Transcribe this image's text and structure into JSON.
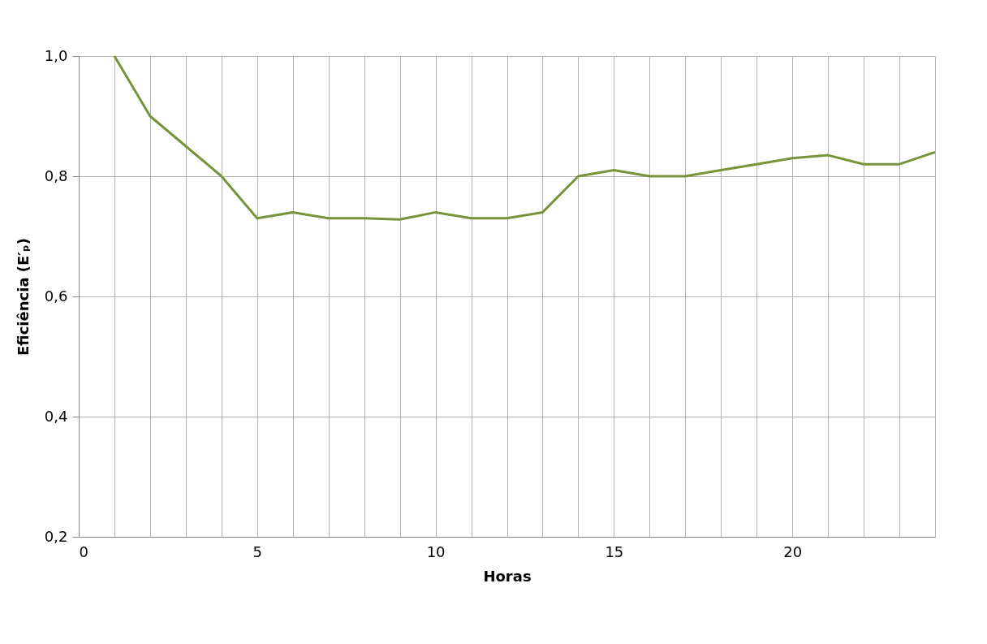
{
  "chart_data": {
    "type": "line",
    "xlabel": "Horas",
    "ylabel": "Eficiência (E′ₚ)",
    "x": [
      1,
      2,
      3,
      4,
      5,
      6,
      7,
      8,
      9,
      10,
      11,
      12,
      13,
      14,
      15,
      16,
      17,
      18,
      19,
      20,
      21,
      22,
      23,
      24
    ],
    "series": [
      {
        "color": "#77933c",
        "values": [
          1.0,
          0.9,
          0.85,
          0.8,
          0.73,
          0.74,
          0.73,
          0.73,
          0.728,
          0.74,
          0.73,
          0.73,
          0.74,
          0.8,
          0.81,
          0.8,
          0.8,
          0.81,
          0.82,
          0.83,
          0.835,
          0.82,
          0.82,
          0.84
        ]
      }
    ],
    "xlim": [
      0,
      24
    ],
    "xticks": [
      0,
      {
        "value": 1,
        "label": null
      },
      {
        "value": 2,
        "label": null
      },
      {
        "value": 3,
        "label": null
      },
      {
        "value": 4,
        "label": null
      },
      5,
      {
        "value": 6,
        "label": null
      },
      {
        "value": 7,
        "label": null
      },
      {
        "value": 8,
        "label": null
      },
      {
        "value": 9,
        "label": null
      },
      10,
      {
        "value": 11,
        "label": null
      },
      {
        "value": 12,
        "label": null
      },
      {
        "value": 13,
        "label": null
      },
      {
        "value": 14,
        "label": null
      },
      15,
      {
        "value": 16,
        "label": null
      },
      {
        "value": 17,
        "label": null
      },
      {
        "value": 18,
        "label": null
      },
      {
        "value": 19,
        "label": null
      },
      20,
      {
        "value": 21,
        "label": null
      },
      {
        "value": 22,
        "label": null
      },
      {
        "value": 23,
        "label": null
      },
      {
        "value": 24,
        "label": null
      }
    ],
    "ylim": [
      0.2,
      1.0
    ],
    "yticks": [
      {
        "value": 0.2,
        "label": "0,2"
      },
      {
        "value": 0.4,
        "label": "0,4"
      },
      {
        "value": 0.6,
        "label": "0,6"
      },
      {
        "value": 0.8,
        "label": "0,8"
      },
      {
        "value": 1.0,
        "label": "1,0"
      }
    ],
    "grid": true,
    "marker": "none",
    "line_style": "solid"
  }
}
